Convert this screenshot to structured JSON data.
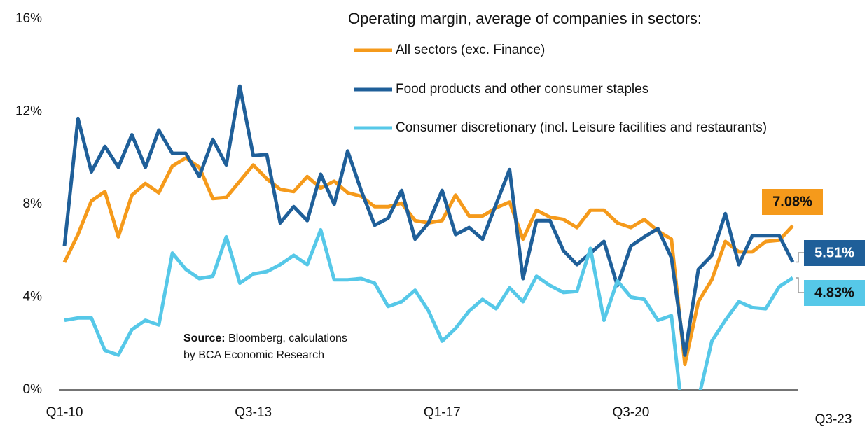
{
  "chart_data": {
    "type": "line",
    "legend_title": "Operating margin, average of companies in sectors:",
    "source": {
      "label": "Source:",
      "lines": [
        "Bloomberg, calculations",
        "by BCA Economic Research"
      ]
    },
    "categories": [
      "Q1-10",
      null,
      null,
      null,
      null,
      null,
      null,
      null,
      null,
      null,
      null,
      null,
      null,
      null,
      "Q3-13",
      null,
      null,
      null,
      null,
      null,
      null,
      null,
      null,
      null,
      null,
      null,
      null,
      null,
      "Q1-17",
      null,
      null,
      null,
      null,
      null,
      null,
      null,
      null,
      null,
      null,
      null,
      null,
      null,
      "Q3-20",
      null,
      null,
      null,
      null,
      null,
      null,
      null,
      null,
      null,
      null,
      null,
      "Q3-23"
    ],
    "ylim": [
      0,
      16
    ],
    "yticks": [
      {
        "value": 0,
        "label": "0%"
      },
      {
        "value": 4,
        "label": "4%"
      },
      {
        "value": 8,
        "label": "8%"
      },
      {
        "value": 12,
        "label": "12%"
      },
      {
        "value": 16,
        "label": "16%"
      }
    ],
    "series": [
      {
        "name": "All sectors (exc. Finance)",
        "color": "#f59a1b",
        "label_color": "#111111",
        "values": [
          5.5,
          6.7,
          8.15,
          8.55,
          6.6,
          8.4,
          8.9,
          8.5,
          9.65,
          10.0,
          9.6,
          8.25,
          8.3,
          9.0,
          9.7,
          9.1,
          8.65,
          8.55,
          9.2,
          8.7,
          9.0,
          8.5,
          8.35,
          7.9,
          7.9,
          8.05,
          7.3,
          7.2,
          7.3,
          8.4,
          7.5,
          7.5,
          7.85,
          8.1,
          6.5,
          7.75,
          7.45,
          7.35,
          7.0,
          7.75,
          7.75,
          7.2,
          7.0,
          7.35,
          6.85,
          6.5,
          1.1,
          3.8,
          4.75,
          6.4,
          5.95,
          5.95,
          6.4,
          6.45,
          7.08
        ],
        "value_labels": [
          null,
          null,
          null,
          null,
          null,
          null,
          null,
          null,
          null,
          null,
          null,
          null,
          null,
          null,
          null,
          null,
          null,
          null,
          null,
          null,
          null,
          null,
          null,
          null,
          null,
          null,
          null,
          null,
          null,
          null,
          null,
          null,
          null,
          null,
          null,
          null,
          null,
          null,
          null,
          null,
          null,
          null,
          null,
          null,
          null,
          null,
          null,
          null,
          null,
          null,
          null,
          null,
          null,
          null,
          "7.08%"
        ]
      },
      {
        "name": "Food products and other consumer staples",
        "color": "#1f5f99",
        "label_color": "#ffffff",
        "values": [
          6.2,
          11.7,
          9.4,
          10.5,
          9.6,
          11.0,
          9.6,
          11.2,
          10.2,
          10.2,
          9.2,
          10.8,
          9.7,
          13.1,
          10.1,
          10.15,
          7.2,
          7.9,
          7.3,
          9.3,
          8.0,
          10.3,
          8.6,
          7.1,
          7.4,
          8.6,
          6.5,
          7.2,
          8.6,
          6.7,
          7.0,
          6.5,
          8.0,
          9.5,
          4.8,
          7.3,
          7.3,
          6.0,
          5.4,
          5.9,
          6.4,
          4.5,
          6.2,
          6.6,
          6.95,
          5.7,
          1.5,
          5.2,
          5.8,
          7.6,
          5.4,
          6.65,
          6.65,
          6.65,
          5.51
        ],
        "value_labels": [
          null,
          null,
          null,
          null,
          null,
          null,
          null,
          null,
          null,
          null,
          null,
          null,
          null,
          null,
          null,
          null,
          null,
          null,
          null,
          null,
          null,
          null,
          null,
          null,
          null,
          null,
          null,
          null,
          null,
          null,
          null,
          null,
          null,
          null,
          null,
          null,
          null,
          null,
          null,
          null,
          null,
          null,
          null,
          null,
          null,
          null,
          null,
          null,
          null,
          null,
          null,
          null,
          null,
          null,
          "5.51%"
        ]
      },
      {
        "name": "Consumer discretionary (incl. Leisure facilities and restaurants)",
        "color": "#56c8e8",
        "label_color": "#111111",
        "values": [
          3.0,
          3.1,
          3.1,
          1.7,
          1.5,
          2.6,
          3.0,
          2.8,
          5.9,
          5.2,
          4.8,
          4.9,
          6.6,
          4.6,
          5.0,
          5.1,
          5.4,
          5.8,
          5.4,
          6.9,
          4.75,
          4.75,
          4.8,
          4.6,
          3.6,
          3.8,
          4.3,
          3.4,
          2.1,
          2.65,
          3.4,
          3.9,
          3.5,
          4.4,
          3.8,
          4.9,
          4.5,
          4.2,
          4.25,
          6.1,
          3.0,
          4.7,
          4.0,
          3.9,
          3.0,
          3.2,
          -2.0,
          -0.4,
          2.1,
          3.0,
          3.8,
          3.55,
          3.5,
          4.45,
          4.83
        ],
        "value_labels": [
          null,
          null,
          null,
          null,
          null,
          null,
          null,
          null,
          null,
          null,
          null,
          null,
          null,
          null,
          null,
          null,
          null,
          null,
          null,
          null,
          null,
          null,
          null,
          null,
          null,
          null,
          null,
          null,
          null,
          null,
          null,
          null,
          null,
          null,
          null,
          null,
          null,
          null,
          null,
          null,
          null,
          null,
          null,
          null,
          null,
          null,
          null,
          null,
          null,
          null,
          null,
          null,
          null,
          null,
          "4.83%"
        ]
      }
    ]
  }
}
